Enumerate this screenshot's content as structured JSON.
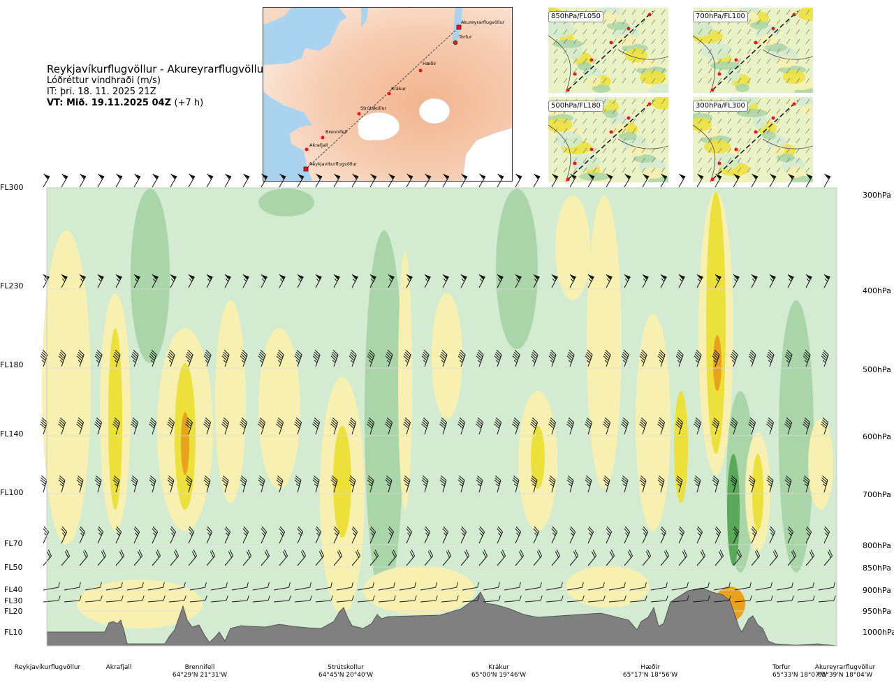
{
  "header": {
    "route": "Reykjavíkurflugvöllur - Akureyrarflugvöllur",
    "product": "Lóðréttur vindhraði (m/s)",
    "issue_time": "IT: þri. 18. 11. 2025 21Z",
    "valid_time_bold": "VT: Mið. 19.11.2025 04Z",
    "valid_time_offset": "(+7 h)"
  },
  "map": {
    "waypoints": [
      {
        "name": "Akureyrarflugvöllur",
        "marker": "square"
      },
      {
        "name": "Torfur",
        "marker": "dot"
      },
      {
        "name": "Hæðir",
        "marker": "dot"
      },
      {
        "name": "Krákur",
        "marker": "dot"
      },
      {
        "name": "Strútskollur",
        "marker": "dot"
      },
      {
        "name": "Brennifell",
        "marker": "dot"
      },
      {
        "name": "Akrafjall",
        "marker": "dot"
      },
      {
        "name": "Reykjavíkurflugvöllur",
        "marker": "square"
      }
    ]
  },
  "mini_maps": [
    {
      "label": "850hPa/FL050"
    },
    {
      "label": "700hPa/FL100"
    },
    {
      "label": "500hPa/FL180"
    },
    {
      "label": "300hPa/FL300"
    }
  ],
  "colors": {
    "sink_strong": "#5aa85a",
    "sink_medium": "#a9d5a9",
    "sink_weak": "#d3ebd0",
    "neutral": "#f2fbe8",
    "rise_weak": "#f7f0b0",
    "rise_medium": "#ece03a",
    "rise_strong": "#e8a21c",
    "terrain": "#808080",
    "barb": "#111111",
    "route_point": "#e8141e"
  },
  "chart_data": {
    "type": "heatmap",
    "title": "",
    "variable": "Lóðréttur vindhraði (m/s)",
    "flight_levels": [
      "FL300",
      "FL230",
      "FL180",
      "FL140",
      "FL100",
      "FL70",
      "FL50",
      "FL40",
      "FL30",
      "FL20",
      "FL10"
    ],
    "pressure_levels": [
      "300hPa",
      "400hPa",
      "500hPa",
      "600hPa",
      "700hPa",
      "800hPa",
      "850hPa",
      "900hPa",
      "950hPa",
      "1000hPa"
    ],
    "pressure_values_hpa": [
      300,
      400,
      500,
      600,
      700,
      800,
      850,
      900,
      950,
      1000
    ],
    "flight_level_values": [
      300,
      230,
      180,
      140,
      100,
      70,
      50,
      40,
      30,
      20,
      10
    ],
    "locations": [
      {
        "name": "Reykjavíkurflugvöllur",
        "coord": "",
        "route_fraction": 0.0
      },
      {
        "name": "Akrafjall",
        "coord": "",
        "route_fraction": 0.08
      },
      {
        "name": "Brennifell",
        "coord": "64°29'N 21°31'W",
        "route_fraction": 0.17
      },
      {
        "name": "Strútskollur",
        "coord": "64°45'N 20°40'W",
        "route_fraction": 0.38
      },
      {
        "name": "Krákur",
        "coord": "65°00'N 19°46'W",
        "route_fraction": 0.56
      },
      {
        "name": "Hæðir",
        "coord": "65°17'N 18°56'W",
        "route_fraction": 0.74
      },
      {
        "name": "Torfur",
        "coord": "65°33'N 18°07'W",
        "route_fraction": 0.94
      },
      {
        "name": "Akureyrarflugvöllur",
        "coord": "65°39'N 18°04'W",
        "route_fraction": 1.0
      }
    ],
    "grid": true,
    "legend": "none"
  }
}
